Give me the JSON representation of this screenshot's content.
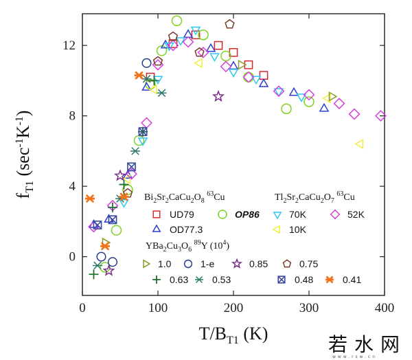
{
  "chart_data": {
    "type": "scatter",
    "title": "",
    "xlabel": "T/B",
    "xlabel_sub": "T1",
    "xlabel_unit": "(K)",
    "ylabel": "f",
    "ylabel_sub": "T1",
    "ylabel_unit": "(sec",
    "ylabel_unit_sup1": "-1",
    "ylabel_unit_mid": "K",
    "ylabel_unit_sup2": "-1",
    "ylabel_unit_end": ")",
    "xlim": [
      0,
      400
    ],
    "ylim": [
      -2.2,
      13.8
    ],
    "xticks": [
      0,
      100,
      200,
      300,
      400
    ],
    "xtick_labels": [
      "0",
      "100",
      "200",
      "300",
      "400"
    ],
    "yticks": [
      0,
      4,
      8,
      12
    ],
    "ytick_labels": [
      "0",
      "4",
      "8",
      "12"
    ],
    "grid": false,
    "legend_placement": "bottom-right",
    "groups": [
      {
        "label": "Bi",
        "sub1": "2",
        "t2": "Sr",
        "sub2": "2",
        "t3": "CaCu",
        "sub3": "2",
        "t4": "O",
        "sub4": "8",
        "nucleus_sup": "63",
        "nucleus": "Cu"
      },
      {
        "label": "Tl",
        "sub1": "2",
        "t2": "Sr",
        "sub2": "2",
        "t3": "CaCu",
        "sub3": "2",
        "t4": "O",
        "sub4": "7",
        "nucleus_sup": "63",
        "nucleus": "Cu"
      },
      {
        "label": "YBa",
        "sub1": "2",
        "t2": "Cu",
        "sub2": "3",
        "t3": "O",
        "sub3": "6",
        "t4": "",
        "sub4": "",
        "nucleus_sup": "89",
        "nucleus": "Y (10",
        "extra_sup": "4",
        "extra": ")"
      }
    ],
    "series": [
      {
        "name": "UD79",
        "marker": "square",
        "color": "#d62728",
        "x": [
          90,
          120,
          150,
          180,
          200,
          220,
          240
        ],
        "y": [
          10.2,
          12.1,
          12.6,
          12.0,
          11.6,
          10.9,
          10.3
        ]
      },
      {
        "name": "OP86",
        "marker": "circle",
        "color": "#7dd321",
        "x": [
          30,
          45,
          60,
          75,
          90,
          105,
          125,
          160,
          190,
          220,
          270,
          300
        ],
        "y": [
          -0.6,
          1.5,
          3.8,
          6.6,
          9.8,
          11.7,
          13.4,
          12.6,
          11.4,
          10.2,
          8.4,
          8.8
        ]
      },
      {
        "name": "OD77.3",
        "marker": "triangle-up",
        "color": "#2a3fcf",
        "x": [
          15,
          35,
          60,
          85,
          110,
          140,
          170,
          200,
          240,
          280,
          320
        ],
        "y": [
          1.8,
          2.1,
          4.6,
          9.6,
          12.0,
          12.6,
          11.8,
          10.8,
          9.8,
          9.3,
          8.4
        ]
      },
      {
        "name": "70K",
        "marker": "triangle-down",
        "color": "#30c8f0",
        "x": [
          55,
          80,
          100,
          115,
          130,
          150,
          175,
          200,
          230,
          260,
          290
        ],
        "y": [
          3.1,
          6.6,
          10.1,
          12.0,
          12.3,
          12.9,
          11.4,
          10.5,
          10.1,
          9.4,
          9.1
        ]
      },
      {
        "name": "10K",
        "marker": "triangle-left",
        "color": "#f2ee40",
        "x": [
          60,
          95,
          155,
          325,
          368
        ],
        "y": [
          4.4,
          9.5,
          11.0,
          9.0,
          6.4
        ]
      },
      {
        "name": "52K",
        "marker": "diamond",
        "color": "#d43fdc",
        "x": [
          15,
          40,
          65,
          85,
          100,
          120,
          140,
          160,
          190,
          220,
          260,
          300,
          340,
          360,
          395
        ],
        "y": [
          1.7,
          2.9,
          4.7,
          7.6,
          10.9,
          12.0,
          12.2,
          11.6,
          10.8,
          10.2,
          9.4,
          9.2,
          8.7,
          8.1,
          8.0
        ]
      },
      {
        "name": "1.0",
        "marker": "triangle-right",
        "color": "#8a9a2a",
        "x": [
          30,
          210,
          330
        ],
        "y": [
          0.8,
          10.9,
          9.1
        ]
      },
      {
        "name": "1-e",
        "marker": "circle-open",
        "color": "#2b3a8a",
        "x": [
          25,
          40,
          85
        ],
        "y": [
          0.0,
          -0.3,
          11.0
        ]
      },
      {
        "name": "0.85",
        "marker": "star",
        "color": "#7a2a8a",
        "x": [
          35,
          50,
          180
        ],
        "y": [
          -0.8,
          4.6,
          9.1
        ]
      },
      {
        "name": "0.75",
        "marker": "pentagon",
        "color": "#7a3a2a",
        "x": [
          60,
          100,
          120,
          155,
          195
        ],
        "y": [
          3.6,
          11.1,
          12.5,
          11.6,
          13.2
        ]
      },
      {
        "name": "0.63",
        "marker": "plus",
        "color": "#1f6f2f",
        "x": [
          15,
          40,
          55,
          80,
          95
        ],
        "y": [
          -1.0,
          2.8,
          4.1,
          7.1,
          10.0
        ]
      },
      {
        "name": "0.53",
        "marker": "asterisk",
        "color": "#2b7a6a",
        "x": [
          20,
          50,
          70,
          85,
          105
        ],
        "y": [
          -0.5,
          3.3,
          6.0,
          10.1,
          9.3
        ]
      },
      {
        "name": "0.48",
        "marker": "square-x",
        "color": "#3a4aa0",
        "x": [
          20,
          40,
          65,
          80
        ],
        "y": [
          1.8,
          2.1,
          5.1,
          7.1
        ]
      },
      {
        "name": "0.41",
        "marker": "asterisk-bold",
        "color": "#f0741c",
        "x": [
          10,
          30,
          55,
          75
        ],
        "y": [
          3.3,
          0.6,
          3.4,
          10.3
        ]
      }
    ]
  },
  "watermark": {
    "text": "若水网",
    "sub": "www.rsw.cn"
  }
}
